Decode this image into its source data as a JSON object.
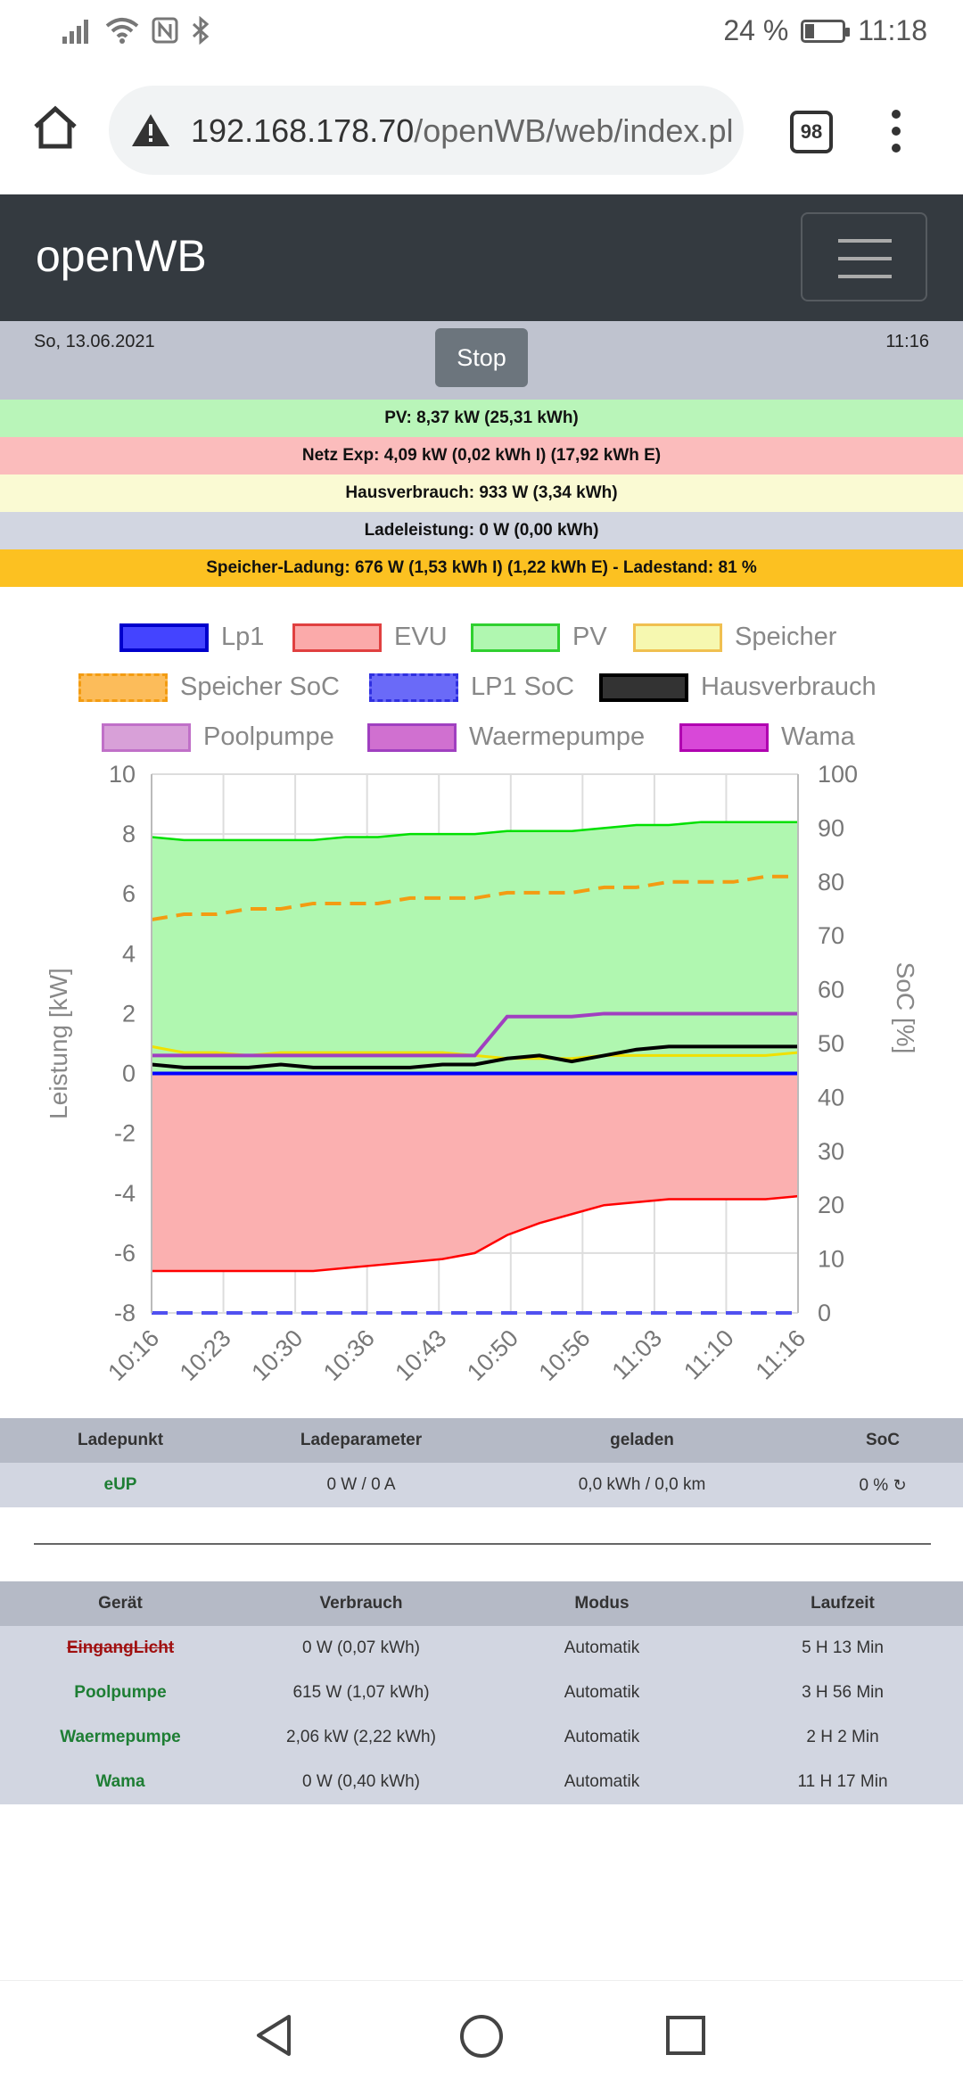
{
  "status_bar": {
    "battery": "24 %",
    "time": "11:18",
    "battery_level": 0.24
  },
  "browser": {
    "url_host": "192.168.178.70",
    "url_path": "/openWB/web/index.pl",
    "tab_count": "98"
  },
  "navbar": {
    "brand": "openWB"
  },
  "info": {
    "date": "So, 13.06.2021",
    "time": "11:16",
    "stop_label": "Stop",
    "pv": "PV: 8,37 kW (25,31 kWh)",
    "netz": "Netz Exp: 4,09 kW (0,02 kWh I) (17,92 kWh E)",
    "haus": "Hausverbrauch: 933 W (3,34 kWh)",
    "lade": "Ladeleistung: 0 W (0,00 kWh)",
    "speicher": "Speicher-Ladung: 676 W (1,53 kWh I) (1,22 kWh E) - Ladestand: 81 %"
  },
  "colors": {
    "pv_row": "#b9f5b9",
    "netz_row": "#fbbcbc",
    "haus_row": "#fafad3",
    "lade_row": "#d2d6e1",
    "speicher_row": "#fcc121",
    "lp1": "#0000ff",
    "evu": "#ff0000",
    "pv": "#00e000",
    "speicher": "#f0e000",
    "speicher_soc": "#f39c12",
    "lp1_soc": "#5050f0",
    "haus": "#000000",
    "poolpumpe": "#c070c8",
    "waermepumpe": "#a040c0",
    "wama": "#c000c0"
  },
  "chart_data": {
    "type": "line",
    "title": "",
    "xlabel": "",
    "ylabel": "Leistung [kW]",
    "y2label": "SoC [%]",
    "x_ticks": [
      "10:16",
      "10:23",
      "10:30",
      "10:36",
      "10:43",
      "10:50",
      "10:56",
      "11:03",
      "11:10",
      "11:16"
    ],
    "ylim": [
      -8,
      10
    ],
    "y_ticks": [
      -8,
      -6,
      -4,
      -2,
      0,
      2,
      4,
      6,
      8,
      10
    ],
    "y2lim": [
      0,
      100
    ],
    "y2_ticks": [
      0,
      10,
      20,
      30,
      40,
      50,
      60,
      70,
      80,
      90,
      100
    ],
    "grid": true,
    "legend_position": "top",
    "legend": [
      "Lp1",
      "EVU",
      "PV",
      "Speicher",
      "Speicher SoC",
      "LP1 SoC",
      "Hausverbrauch",
      "Poolpumpe",
      "Waermepumpe",
      "Wama"
    ],
    "x_minutes": [
      0,
      3,
      6,
      9,
      12,
      15,
      18,
      21,
      24,
      27,
      30,
      33,
      36,
      39,
      42,
      45,
      48,
      51,
      54,
      57,
      60
    ],
    "series": [
      {
        "name": "PV",
        "values": [
          7.9,
          7.8,
          7.8,
          7.8,
          7.8,
          7.8,
          7.9,
          7.9,
          8.0,
          8.0,
          8.0,
          8.1,
          8.1,
          8.1,
          8.2,
          8.3,
          8.3,
          8.4,
          8.4,
          8.4,
          8.4
        ]
      },
      {
        "name": "EVU",
        "values": [
          -6.6,
          -6.6,
          -6.6,
          -6.6,
          -6.6,
          -6.6,
          -6.5,
          -6.4,
          -6.3,
          -6.2,
          -6.0,
          -5.4,
          -5.0,
          -4.7,
          -4.4,
          -4.3,
          -4.2,
          -4.2,
          -4.2,
          -4.2,
          -4.1
        ]
      },
      {
        "name": "Hausverbrauch",
        "values": [
          0.3,
          0.2,
          0.2,
          0.2,
          0.3,
          0.2,
          0.2,
          0.2,
          0.2,
          0.3,
          0.3,
          0.5,
          0.6,
          0.4,
          0.6,
          0.8,
          0.9,
          0.9,
          0.9,
          0.9,
          0.9
        ]
      },
      {
        "name": "Speicher",
        "values": [
          0.9,
          0.7,
          0.7,
          0.6,
          0.7,
          0.7,
          0.7,
          0.7,
          0.7,
          0.7,
          0.6,
          0.5,
          0.5,
          0.5,
          0.6,
          0.6,
          0.6,
          0.6,
          0.6,
          0.6,
          0.7
        ]
      },
      {
        "name": "Waermepumpe",
        "values": [
          0.6,
          0.6,
          0.6,
          0.6,
          0.6,
          0.6,
          0.6,
          0.6,
          0.6,
          0.6,
          0.6,
          1.9,
          1.9,
          1.9,
          2.0,
          2.0,
          2.0,
          2.0,
          2.0,
          2.0,
          2.0
        ]
      },
      {
        "name": "Lp1",
        "values": [
          0,
          0,
          0,
          0,
          0,
          0,
          0,
          0,
          0,
          0,
          0,
          0,
          0,
          0,
          0,
          0,
          0,
          0,
          0,
          0,
          0
        ]
      },
      {
        "name": "Speicher SoC",
        "axis": "right",
        "values": [
          73,
          74,
          74,
          75,
          75,
          76,
          76,
          76,
          77,
          77,
          77,
          78,
          78,
          78,
          79,
          79,
          80,
          80,
          80,
          81,
          81
        ]
      },
      {
        "name": "LP1 SoC",
        "axis": "right",
        "values": [
          0,
          0,
          0,
          0,
          0,
          0,
          0,
          0,
          0,
          0,
          0,
          0,
          0,
          0,
          0,
          0,
          0,
          0,
          0,
          0,
          0
        ]
      }
    ]
  },
  "ladepunkt_table": {
    "headers": [
      "Ladepunkt",
      "Ladeparameter",
      "geladen",
      "SoC"
    ],
    "rows": [
      [
        "eUP",
        "0 W / 0 A",
        "0,0 kWh / 0,0 km",
        "0 %"
      ]
    ]
  },
  "geraete_table": {
    "headers": [
      "Gerät",
      "Verbrauch",
      "Modus",
      "Laufzeit"
    ],
    "rows": [
      [
        "EingangLicht",
        "0 W (0,07 kWh)",
        "Automatik",
        "5 H 13 Min"
      ],
      [
        "Poolpumpe",
        "615 W (1,07 kWh)",
        "Automatik",
        "3 H 56 Min"
      ],
      [
        "Waermepumpe",
        "2,06 kW (2,22 kWh)",
        "Automatik",
        "2 H 2 Min"
      ],
      [
        "Wama",
        "0 W (0,40 kWh)",
        "Automatik",
        "11 H 17 Min"
      ]
    ]
  }
}
